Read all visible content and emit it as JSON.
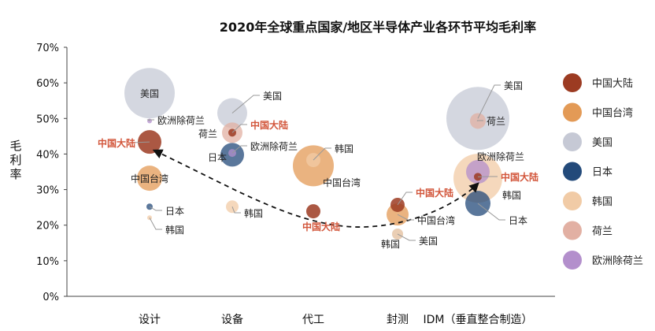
{
  "chart_data": {
    "type": "scatter",
    "subtype": "bubble",
    "title": "2020年全球重点国家/地区半导体产业各环节平均毛利率",
    "ylabel": "毛利率",
    "xlabel": "",
    "categories": [
      "设计",
      "设备",
      "代工",
      "封测",
      "IDM（垂直整合制造）"
    ],
    "yticks": [
      "0%",
      "10%",
      "20%",
      "30%",
      "40%",
      "50%",
      "60%",
      "70%"
    ],
    "ylim": [
      0,
      70
    ],
    "grid": false,
    "legend_position": "right",
    "series": [
      {
        "name": "中国大陆",
        "color": "#9c3b22",
        "values": [
          43.4,
          46.0,
          23.9,
          25.7,
          33.6
        ],
        "size": [
          15,
          5,
          9,
          9,
          5
        ]
      },
      {
        "name": "中国台湾",
        "color": "#e39a56",
        "values": [
          33.2,
          null,
          36.7,
          23.0,
          null
        ],
        "size": [
          16,
          null,
          26,
          14,
          null
        ]
      },
      {
        "name": "美国",
        "color": "#c6c9d5",
        "values": [
          57.1,
          51.5,
          null,
          17.5,
          50.0
        ],
        "size": [
          32,
          19,
          null,
          7,
          40
        ]
      },
      {
        "name": "日本",
        "color": "#234a7a",
        "values": [
          25.2,
          39.8,
          null,
          null,
          26.1
        ],
        "size": [
          4,
          15,
          null,
          null,
          16
        ]
      },
      {
        "name": "韩国",
        "color": "#f1cba6",
        "values": [
          22.1,
          25.2,
          38.3,
          17.5,
          33.2
        ],
        "size": [
          3,
          8,
          9,
          7,
          31
        ]
      },
      {
        "name": "荷兰",
        "color": "#e2b0a3",
        "values": [
          null,
          46.0,
          null,
          null,
          49.3
        ],
        "size": [
          null,
          13,
          null,
          null,
          10
        ]
      },
      {
        "name": "欧洲除荷兰",
        "color": "#b38fcc",
        "values": [
          49.3,
          40.3,
          null,
          null,
          35.0
        ],
        "size": [
          3,
          5,
          null,
          null,
          15
        ]
      }
    ],
    "annotations": [
      "dashed arrow curve connecting 中国大陆 from 设计 to IDM"
    ]
  }
}
